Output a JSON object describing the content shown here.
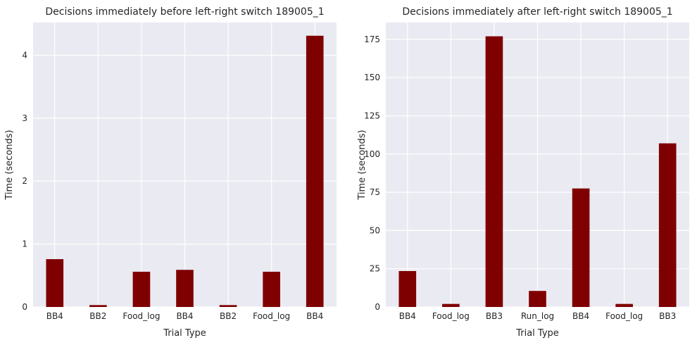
{
  "style": {
    "plot_bg": "#eaeaf2",
    "grid": "#ffffff",
    "bar": "#7f0000",
    "text": "#262626"
  },
  "chart_data": [
    {
      "type": "bar",
      "title": "Decisions immediately before left-right switch 189005_1",
      "xlabel": "Trial Type",
      "ylabel": "Time (seconds)",
      "categories": [
        "BB4",
        "BB2",
        "Food_log",
        "BB4",
        "BB2",
        "Food_log",
        "BB4"
      ],
      "values": [
        0.76,
        0.03,
        0.56,
        0.59,
        0.03,
        0.56,
        4.31
      ],
      "ylim": [
        0,
        4.52
      ],
      "yticks": [
        0,
        1,
        2,
        3,
        4
      ],
      "ytick_labels": [
        "0",
        "1",
        "2",
        "3",
        "4"
      ],
      "grid": true,
      "legend": "none"
    },
    {
      "type": "bar",
      "title": "Decisions immediately after left-right switch 189005_1",
      "xlabel": "Trial Type",
      "ylabel": "Time (seconds)",
      "categories": [
        "BB4",
        "Food_log",
        "BB3",
        "Run_log",
        "BB4",
        "Food_log",
        "BB3"
      ],
      "values": [
        23.5,
        2.0,
        177.0,
        10.5,
        77.5,
        2.0,
        107.0
      ],
      "ylim": [
        0,
        186
      ],
      "yticks": [
        0,
        25,
        50,
        75,
        100,
        125,
        150,
        175
      ],
      "ytick_labels": [
        "0",
        "25",
        "50",
        "75",
        "100",
        "125",
        "150",
        "175"
      ],
      "grid": true,
      "legend": "none"
    }
  ]
}
